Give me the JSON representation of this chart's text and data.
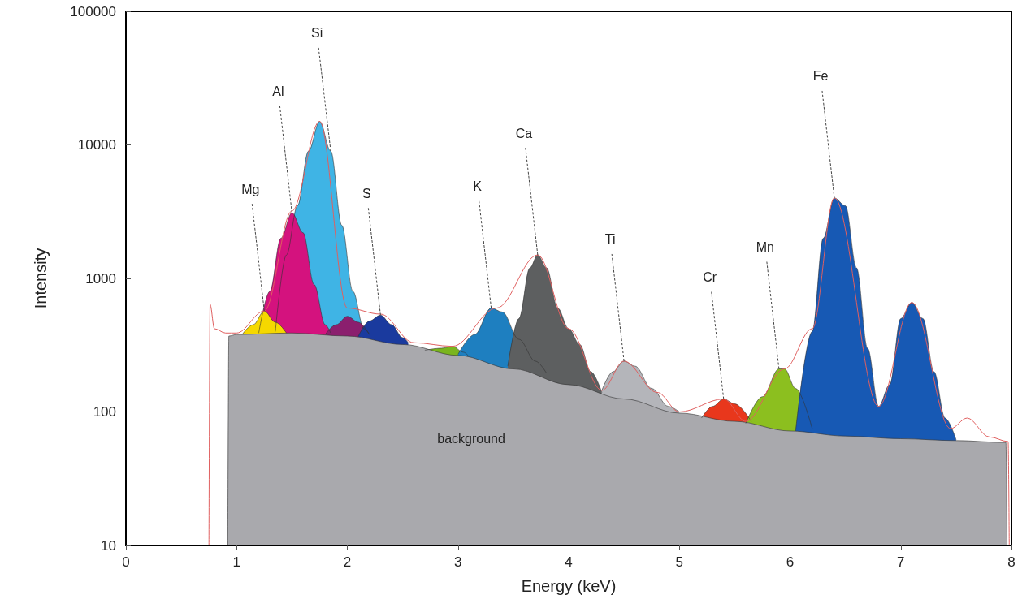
{
  "chart_data": {
    "type": "area",
    "xlabel": "Energy (keV)",
    "ylabel": "Intensity",
    "log": "y",
    "grid": false,
    "xlim": [
      0,
      8
    ],
    "xticks": [
      0,
      1,
      2,
      3,
      4,
      5,
      6,
      7,
      8
    ],
    "ylim": [
      10,
      100000
    ],
    "yticks": [
      10,
      100,
      1000,
      10000,
      100000
    ],
    "series": [
      {
        "color": "#3fb4e5",
        "x": [
          1.35,
          1.45,
          1.55,
          1.65,
          1.75,
          1.85,
          1.95,
          2.05,
          2.15,
          2.2
        ],
        "values": [
          400,
          1500,
          3500,
          9000,
          15000,
          9000,
          2500,
          800,
          420,
          380
        ]
      },
      {
        "color": "#d4127e",
        "x": [
          1.2,
          1.3,
          1.4,
          1.5,
          1.6,
          1.7,
          1.8,
          1.85
        ],
        "values": [
          390,
          800,
          2000,
          3100,
          2200,
          900,
          450,
          390
        ]
      },
      {
        "color": "#f5d800",
        "x": [
          1.05,
          1.15,
          1.25,
          1.35,
          1.45
        ],
        "values": [
          380,
          450,
          570,
          470,
          390
        ]
      },
      {
        "color": "#8b1f6e",
        "x": [
          1.8,
          1.9,
          2.0,
          2.1,
          2.2
        ],
        "values": [
          380,
          450,
          520,
          470,
          380
        ]
      },
      {
        "color": "#1a3a9e",
        "x": [
          2.1,
          2.2,
          2.3,
          2.4,
          2.5,
          2.55
        ],
        "values": [
          370,
          480,
          530,
          450,
          360,
          330
        ]
      },
      {
        "color": "#7ab51d",
        "x": [
          2.7,
          2.85,
          2.95,
          3.05,
          3.1
        ],
        "values": [
          290,
          300,
          310,
          280,
          260
        ]
      },
      {
        "color": "#1e7fc0",
        "x": [
          3.0,
          3.15,
          3.3,
          3.4,
          3.55,
          3.7,
          3.8
        ],
        "values": [
          270,
          380,
          600,
          560,
          350,
          240,
          195
        ]
      },
      {
        "color": "#5d5f60",
        "x": [
          3.45,
          3.55,
          3.65,
          3.72,
          3.8,
          3.9,
          4.0,
          4.1,
          4.2,
          4.3
        ],
        "values": [
          220,
          500,
          1200,
          1500,
          1200,
          600,
          420,
          320,
          200,
          140
        ]
      },
      {
        "color": "#b4b5ba",
        "x": [
          4.3,
          4.4,
          4.5,
          4.6,
          4.75,
          4.9,
          5.0
        ],
        "values": [
          145,
          200,
          240,
          220,
          150,
          110,
          100
        ]
      },
      {
        "color": "#e8371c",
        "x": [
          5.2,
          5.3,
          5.4,
          5.5,
          5.65
        ],
        "values": [
          90,
          110,
          125,
          115,
          85
        ]
      },
      {
        "color": "#8cbf1f",
        "x": [
          5.6,
          5.75,
          5.9,
          5.95,
          6.05,
          6.2
        ],
        "values": [
          82,
          130,
          210,
          210,
          150,
          75
        ]
      },
      {
        "color": "#1759b4",
        "x": [
          6.05,
          6.2,
          6.3,
          6.4,
          6.5,
          6.6,
          6.7,
          6.8,
          6.9,
          7.0,
          7.1,
          7.2,
          7.3,
          7.4,
          7.5
        ],
        "values": [
          72,
          400,
          2000,
          4000,
          3500,
          1200,
          300,
          110,
          160,
          500,
          660,
          500,
          200,
          90,
          62
        ]
      },
      {
        "color": "#a9a9ad",
        "x": [
          0.92,
          0.93,
          1.0,
          1.5,
          2.0,
          2.5,
          3.0,
          3.5,
          4.0,
          4.5,
          5.0,
          5.5,
          6.0,
          6.5,
          7.0,
          7.5,
          7.95,
          7.96
        ],
        "values": [
          10,
          370,
          380,
          390,
          370,
          320,
          265,
          210,
          160,
          125,
          98,
          85,
          72,
          66,
          63,
          61,
          59,
          10
        ]
      },
      {
        "type": "line",
        "color": "#e06060",
        "x": [
          0.75,
          0.76,
          0.8,
          0.9,
          1.0,
          1.25,
          1.5,
          1.75,
          2.0,
          2.3,
          2.6,
          2.95,
          3.35,
          3.72,
          4.0,
          4.3,
          4.5,
          4.8,
          5.0,
          5.4,
          5.6,
          5.95,
          6.2,
          6.4,
          6.8,
          7.1,
          7.45,
          7.6,
          7.8,
          7.97,
          7.98
        ],
        "values": [
          10,
          640,
          420,
          390,
          390,
          570,
          3200,
          15000,
          600,
          540,
          330,
          310,
          600,
          1500,
          420,
          145,
          240,
          140,
          100,
          125,
          85,
          210,
          420,
          4000,
          110,
          660,
          75,
          90,
          65,
          60,
          10
        ]
      }
    ],
    "annotations": [
      {
        "text": "Mg",
        "x": 1.25,
        "y": 570
      },
      {
        "text": "Al",
        "x": 1.5,
        "y": 3100
      },
      {
        "text": "Si",
        "x": 1.85,
        "y": 9000
      },
      {
        "text": "S",
        "x": 2.3,
        "y": 530
      },
      {
        "text": "K",
        "x": 3.3,
        "y": 600
      },
      {
        "text": "Ca",
        "x": 3.72,
        "y": 1500
      },
      {
        "text": "Ti",
        "x": 4.5,
        "y": 240
      },
      {
        "text": "Cr",
        "x": 5.4,
        "y": 125
      },
      {
        "text": "Mn",
        "x": 5.9,
        "y": 210
      },
      {
        "text": "Fe",
        "x": 6.4,
        "y": 4000
      },
      "background"
    ]
  }
}
